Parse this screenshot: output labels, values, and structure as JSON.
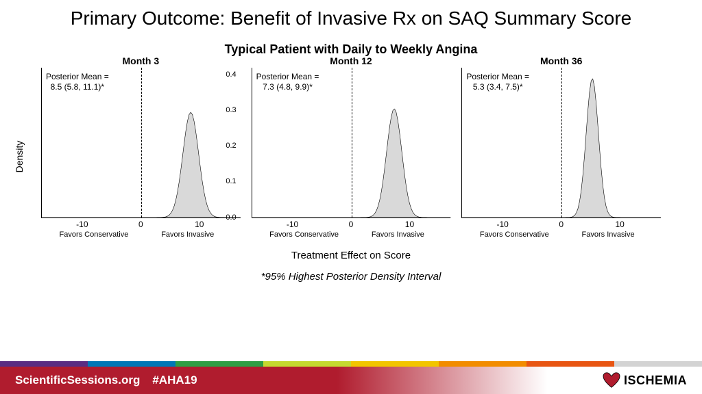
{
  "title": "Primary Outcome: Benefit of Invasive Rx on SAQ Summary Score",
  "subtitle": "Typical Patient with Daily to Weekly Angina",
  "ylabel": "Density",
  "xlabel": "Treatment Effect on Score",
  "footnote": "*95% Highest Posterior Density Interval",
  "chart_styling": {
    "xlim": [
      -17,
      17
    ],
    "ylim": [
      0,
      0.42
    ],
    "xticks": [
      -10,
      0,
      10
    ],
    "yticks": [
      0.0,
      0.1,
      0.2,
      0.3,
      0.4
    ],
    "xsublabels": {
      "neg": "Favors Conservative",
      "pos": "Favors Invasive"
    },
    "curve_fill": "#d9d9d9",
    "curve_stroke": "#000000",
    "zero_line_dash": "4,3",
    "panel_border_color": "#000000"
  },
  "panels": [
    {
      "title": "Month 3",
      "annot_l1": "Posterior Mean =",
      "annot_l2": "8.5 (5.8, 11.1)*",
      "mean": 8.5,
      "sd": 1.35,
      "peak": 0.295
    },
    {
      "title": "Month 12",
      "annot_l1": "Posterior Mean =",
      "annot_l2": "7.3 (4.8, 9.9)*",
      "mean": 7.3,
      "sd": 1.3,
      "peak": 0.305
    },
    {
      "title": "Month 36",
      "annot_l1": "Posterior Mean =",
      "annot_l2": "5.3 (3.4, 7.5)*",
      "mean": 5.3,
      "sd": 1.05,
      "peak": 0.39
    }
  ],
  "footer": {
    "site": "ScientificSessions.org",
    "hashtag": "#AHA19",
    "logo_text": "ISCHEMIA",
    "stripe_colors": [
      "#5a2d82",
      "#0077b6",
      "#2e9e44",
      "#c5d930",
      "#f2c500",
      "#f28c00",
      "#e85512",
      "#d3d3d3"
    ]
  }
}
